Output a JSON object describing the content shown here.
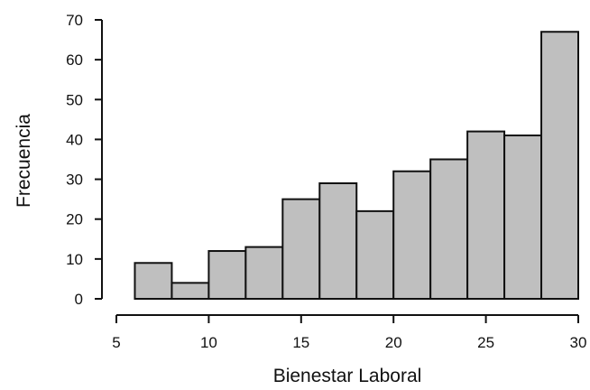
{
  "chart_data": {
    "type": "bar",
    "title": "",
    "xlabel": "Bienestar Laboral",
    "ylabel": "Frecuencia",
    "xlim": [
      5,
      30
    ],
    "ylim": [
      0,
      70
    ],
    "x_ticks": [
      5,
      10,
      15,
      20,
      25,
      30
    ],
    "y_ticks": [
      0,
      10,
      20,
      30,
      40,
      50,
      60,
      70
    ],
    "x_tick_labels": [
      "5",
      "10",
      "15",
      "20",
      "25",
      "30"
    ],
    "y_tick_labels": [
      "0",
      "10",
      "20",
      "30",
      "40",
      "50",
      "60",
      "70"
    ],
    "bins": [
      {
        "start": 6,
        "end": 8,
        "value": 9
      },
      {
        "start": 8,
        "end": 10,
        "value": 4
      },
      {
        "start": 10,
        "end": 12,
        "value": 12
      },
      {
        "start": 12,
        "end": 14,
        "value": 13
      },
      {
        "start": 14,
        "end": 16,
        "value": 25
      },
      {
        "start": 16,
        "end": 18,
        "value": 29
      },
      {
        "start": 18,
        "end": 20,
        "value": 22
      },
      {
        "start": 20,
        "end": 22,
        "value": 32
      },
      {
        "start": 22,
        "end": 24,
        "value": 35
      },
      {
        "start": 24,
        "end": 26,
        "value": 42
      },
      {
        "start": 26,
        "end": 28,
        "value": 41
      },
      {
        "start": 28,
        "end": 30,
        "value": 67
      }
    ],
    "grid": false,
    "colors": {
      "bar_fill": "#bfbfbf",
      "bar_stroke": "#111111",
      "axis": "#111111"
    }
  }
}
